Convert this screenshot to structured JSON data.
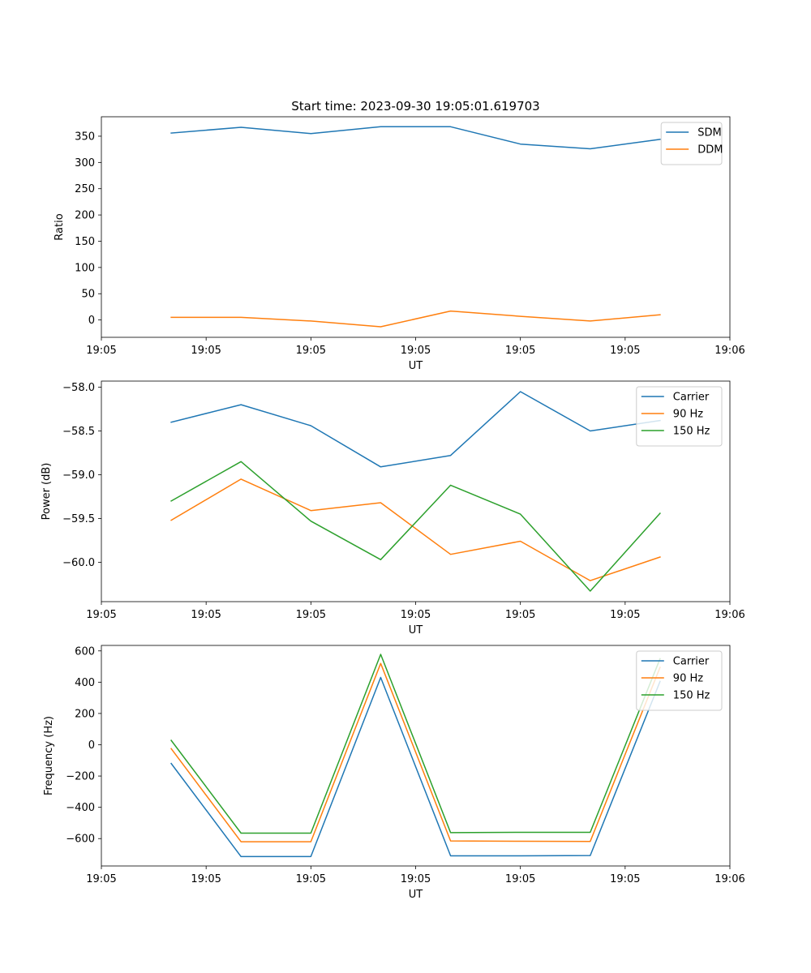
{
  "figure_title": "Start time: 2023-09-30 19:05:01.619703",
  "chart_data": [
    {
      "type": "line",
      "title": "Start time: 2023-09-30 19:05:01.619703",
      "xlabel": "UT",
      "ylabel": "Ratio",
      "x": [
        1,
        2,
        3,
        4,
        5,
        6,
        7,
        8
      ],
      "xlim": [
        0,
        9
      ],
      "xticks": [
        0,
        1.5,
        3,
        4.5,
        6,
        7.5,
        9
      ],
      "xtick_labels": [
        "19:05",
        "19:05",
        "19:05",
        "19:05",
        "19:05",
        "19:05",
        "19:06"
      ],
      "ylim": [
        -33,
        387
      ],
      "yticks": [
        0,
        50,
        100,
        150,
        200,
        250,
        300,
        350
      ],
      "ytick_labels": [
        "0",
        "50",
        "100",
        "150",
        "200",
        "250",
        "300",
        "350"
      ],
      "legend_position": "top-right",
      "series": [
        {
          "name": "SDM",
          "color": "#1f77b4",
          "values": [
            356,
            367,
            355,
            368,
            368,
            335,
            326,
            344
          ]
        },
        {
          "name": "DDM",
          "color": "#ff7f0e",
          "values": [
            5,
            5,
            -2,
            -13,
            17,
            7,
            -2,
            10
          ]
        }
      ]
    },
    {
      "type": "line",
      "title": "",
      "xlabel": "UT",
      "ylabel": "Power (dB)",
      "x": [
        1,
        2,
        3,
        4,
        5,
        6,
        7,
        8
      ],
      "xlim": [
        0,
        9
      ],
      "xticks": [
        0,
        1.5,
        3,
        4.5,
        6,
        7.5,
        9
      ],
      "xtick_labels": [
        "19:05",
        "19:05",
        "19:05",
        "19:05",
        "19:05",
        "19:05",
        "19:06"
      ],
      "ylim": [
        -60.45,
        -57.93
      ],
      "yticks": [
        -60.0,
        -59.5,
        -59.0,
        -58.5,
        -58.0
      ],
      "ytick_labels": [
        "−60.0",
        "−59.5",
        "−59.0",
        "−58.5",
        "−58.0"
      ],
      "legend_position": "top-right",
      "series": [
        {
          "name": "Carrier",
          "color": "#1f77b4",
          "values": [
            -58.4,
            -58.2,
            -58.44,
            -58.91,
            -58.78,
            -58.05,
            -58.5,
            -58.38
          ]
        },
        {
          "name": "90 Hz",
          "color": "#ff7f0e",
          "values": [
            -59.52,
            -59.05,
            -59.41,
            -59.32,
            -59.91,
            -59.76,
            -60.21,
            -59.94
          ]
        },
        {
          "name": "150 Hz",
          "color": "#2ca02c",
          "values": [
            -59.3,
            -58.85,
            -59.53,
            -59.97,
            -59.12,
            -59.45,
            -60.33,
            -59.44
          ]
        }
      ]
    },
    {
      "type": "line",
      "title": "",
      "xlabel": "UT",
      "ylabel": "Frequency (Hz)",
      "x": [
        1,
        2,
        3,
        4,
        5,
        6,
        7,
        8
      ],
      "xlim": [
        0,
        9
      ],
      "xticks": [
        0,
        1.5,
        3,
        4.5,
        6,
        7.5,
        9
      ],
      "xtick_labels": [
        "19:05",
        "19:05",
        "19:05",
        "19:05",
        "19:05",
        "19:05",
        "19:06"
      ],
      "ylim": [
        -775,
        635
      ],
      "yticks": [
        -600,
        -400,
        -200,
        0,
        200,
        400,
        600
      ],
      "ytick_labels": [
        "−600",
        "−400",
        "−200",
        "0",
        "200",
        "400",
        "600"
      ],
      "legend_position": "top-right",
      "series": [
        {
          "name": "Carrier",
          "color": "#1f77b4",
          "values": [
            -120,
            -715,
            -715,
            430,
            -710,
            -710,
            -708,
            405
          ]
        },
        {
          "name": "90 Hz",
          "color": "#ff7f0e",
          "values": [
            -25,
            -620,
            -620,
            520,
            -615,
            -617,
            -618,
            495
          ]
        },
        {
          "name": "150 Hz",
          "color": "#2ca02c",
          "values": [
            28,
            -565,
            -565,
            578,
            -562,
            -560,
            -560,
            550
          ]
        }
      ]
    }
  ]
}
